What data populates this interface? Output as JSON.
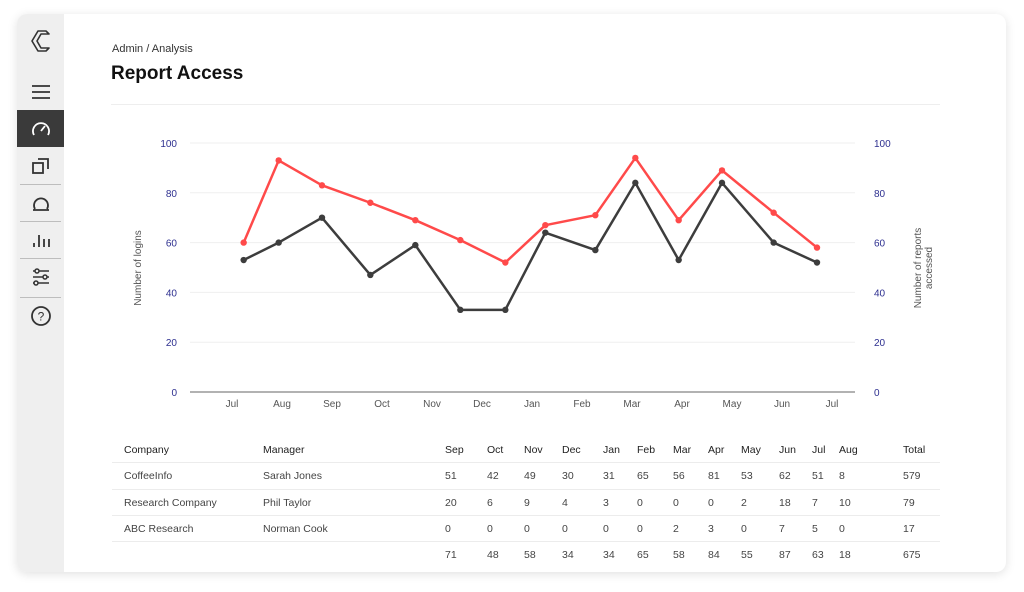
{
  "breadcrumb": "Admin / Analysis",
  "page_title": "Report Access",
  "sidebar": {
    "items": [
      {
        "icon": "menu-icon"
      },
      {
        "icon": "gauge-icon",
        "active": true
      },
      {
        "icon": "copy-icon"
      },
      {
        "icon": "omega-icon"
      },
      {
        "icon": "bar-chart-icon"
      },
      {
        "icon": "sliders-icon"
      },
      {
        "icon": "help-icon"
      }
    ]
  },
  "colors": {
    "red_series": "#ff4a4a",
    "dark_series": "#3d3d3d",
    "tick_labels": "#2d2f8f",
    "sidebar_active": "#3a3a3a"
  },
  "chart_data": {
    "type": "line",
    "xlabel": "",
    "ylabel": "Number of logins",
    "y2label": "Number of reports accessed",
    "ylim": [
      0,
      100
    ],
    "y2lim": [
      0,
      100
    ],
    "yticks": [
      "0",
      "20",
      "40",
      "60",
      "80",
      "100"
    ],
    "y2ticks": [
      "0",
      "20",
      "40",
      "60",
      "80",
      "100"
    ],
    "xticks": [
      "Jul",
      "Aug",
      "Sep",
      "Oct",
      "Nov",
      "Dec",
      "Jan",
      "Feb",
      "Mar",
      "Apr",
      "May",
      "Jun",
      "Jul"
    ],
    "grid": true,
    "legend": "none",
    "series": [
      {
        "color": "#ff4a4a",
        "x": [
          "Jul 8",
          "Jul 29",
          "Aug 25",
          "Sep 24",
          "Oct 21",
          "Nov 18",
          "Dec 15",
          "Jan 9",
          "Feb 9",
          "Mar 3",
          "Mar 29",
          "Apr 25",
          "May 26",
          "Jun 22"
        ],
        "values": [
          60,
          93,
          83,
          76,
          69,
          61,
          52,
          67,
          71,
          94,
          69,
          89,
          72,
          58
        ]
      },
      {
        "color": "#3d3d3d",
        "x": [
          "Jul 8",
          "Jul 29",
          "Aug 25",
          "Sep 24",
          "Oct 21",
          "Nov 18",
          "Dec 15",
          "Jan 9",
          "Feb 9",
          "Mar 3",
          "Mar 29",
          "Apr 25",
          "May 26",
          "Jun 22"
        ],
        "values": [
          53,
          60,
          70,
          47,
          59,
          33,
          33,
          64,
          57,
          84,
          53,
          84,
          60,
          52
        ]
      }
    ]
  },
  "table": {
    "headers": [
      "Company",
      "Manager",
      "Sep",
      "Oct",
      "Nov",
      "Dec",
      "Jan",
      "Feb",
      "Mar",
      "Apr",
      "May",
      "Jun",
      "Jul",
      "Aug",
      "Total"
    ],
    "rows": [
      [
        "CoffeeInfo",
        "Sarah Jones",
        "51",
        "42",
        "49",
        "30",
        "31",
        "65",
        "56",
        "81",
        "53",
        "62",
        "51",
        "8",
        "579"
      ],
      [
        "Research Company",
        "Phil Taylor",
        "20",
        "6",
        "9",
        "4",
        "3",
        "0",
        "0",
        "0",
        "2",
        "18",
        "7",
        "10",
        "79"
      ],
      [
        "ABC Research",
        "Norman Cook",
        "0",
        "0",
        "0",
        "0",
        "0",
        "0",
        "2",
        "3",
        "0",
        "7",
        "5",
        "0",
        "17"
      ],
      [
        "",
        "",
        "71",
        "48",
        "58",
        "34",
        "34",
        "65",
        "58",
        "84",
        "55",
        "87",
        "63",
        "18",
        "675"
      ]
    ]
  }
}
